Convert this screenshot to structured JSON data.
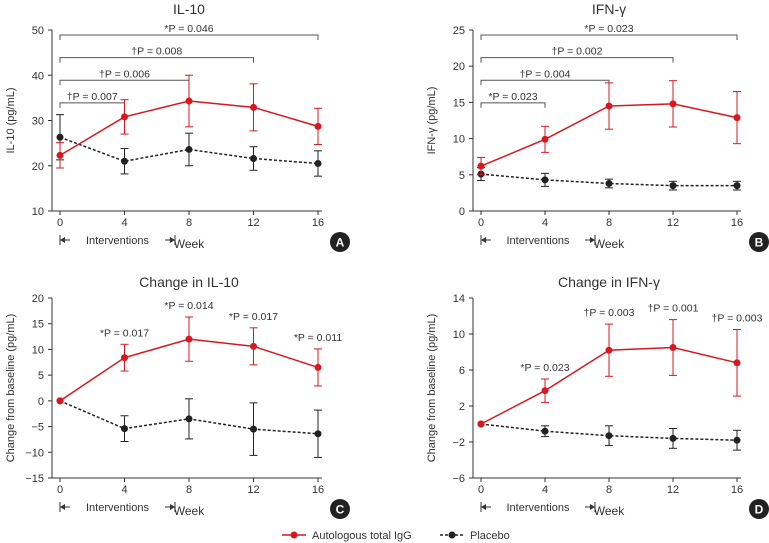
{
  "week_label": "Week",
  "interventions_label": "Interventions",
  "legend": {
    "igg": "Autologous total IgG",
    "placebo": "Placebo"
  },
  "colors": {
    "igg": "#d7191f",
    "placebo": "#222222"
  },
  "chart_data": [
    {
      "panel": "A",
      "type": "line",
      "title": "IL-10",
      "xlabel": "Week",
      "ylabel": "IL-10 (pg/mL)",
      "x": [
        0,
        4,
        8,
        12,
        16
      ],
      "ylim": [
        10,
        50
      ],
      "yticks": [
        10,
        20,
        30,
        40,
        50
      ],
      "series": [
        {
          "name": "Autologous total IgG",
          "values": [
            22.3,
            30.8,
            34.3,
            32.9,
            28.7
          ],
          "err": [
            2.8,
            3.8,
            5.7,
            5.2,
            4.0
          ]
        },
        {
          "name": "Placebo",
          "values": [
            26.3,
            21.0,
            23.6,
            21.6,
            20.5
          ],
          "err": [
            5.0,
            2.8,
            3.6,
            2.6,
            2.8
          ]
        }
      ],
      "brackets": [
        {
          "end": 16,
          "label": "*P = 0.046"
        },
        {
          "end": 12,
          "label": "†P = 0.008"
        },
        {
          "end": 8,
          "label": "†P = 0.006"
        },
        {
          "end": 4,
          "label": "†P = 0.007"
        }
      ]
    },
    {
      "panel": "B",
      "type": "line",
      "title": "IFN-γ",
      "xlabel": "Week",
      "ylabel": "IFN-γ (pg/mL)",
      "x": [
        0,
        4,
        8,
        12,
        16
      ],
      "ylim": [
        0,
        25
      ],
      "yticks": [
        0,
        5,
        10,
        15,
        20,
        25
      ],
      "series": [
        {
          "name": "Autologous total IgG",
          "values": [
            6.2,
            9.9,
            14.5,
            14.8,
            12.9
          ],
          "err": [
            1.2,
            1.8,
            3.2,
            3.2,
            3.6
          ]
        },
        {
          "name": "Placebo",
          "values": [
            5.1,
            4.3,
            3.8,
            3.5,
            3.5
          ],
          "err": [
            0.9,
            0.9,
            0.6,
            0.6,
            0.6
          ]
        }
      ],
      "brackets": [
        {
          "end": 16,
          "label": "*P = 0.023"
        },
        {
          "end": 12,
          "label": "†P = 0.002"
        },
        {
          "end": 8,
          "label": "†P = 0.004"
        },
        {
          "end": 4,
          "label": "*P = 0.023"
        }
      ]
    },
    {
      "panel": "C",
      "type": "line",
      "title": "Change in IL-10",
      "xlabel": "Week",
      "ylabel": "Change from baseline (pg/mL)",
      "x": [
        0,
        4,
        8,
        12,
        16
      ],
      "ylim": [
        -15,
        20
      ],
      "yticks": [
        -15,
        -10,
        -5,
        0,
        5,
        10,
        15,
        20
      ],
      "series": [
        {
          "name": "Autologous total IgG",
          "values": [
            0,
            8.4,
            12.0,
            10.6,
            6.5
          ],
          "err": [
            0,
            2.6,
            4.3,
            3.6,
            3.6
          ]
        },
        {
          "name": "Placebo",
          "values": [
            0,
            -5.4,
            -3.5,
            -5.5,
            -6.4
          ],
          "err": [
            0,
            2.5,
            3.9,
            5.1,
            4.6
          ]
        }
      ],
      "point_labels": [
        {
          "x": 4,
          "label": "*P = 0.017"
        },
        {
          "x": 8,
          "label": "*P = 0.014"
        },
        {
          "x": 12,
          "label": "*P = 0.017"
        },
        {
          "x": 16,
          "label": "*P = 0.011"
        }
      ]
    },
    {
      "panel": "D",
      "type": "line",
      "title": "Change in IFN-γ",
      "xlabel": "Week",
      "ylabel": "Change from baseline (pg/mL)",
      "x": [
        0,
        4,
        8,
        12,
        16
      ],
      "ylim": [
        -6,
        14
      ],
      "yticks": [
        -6,
        -2,
        2,
        6,
        10,
        14
      ],
      "series": [
        {
          "name": "Autologous total IgG",
          "values": [
            0,
            3.7,
            8.2,
            8.5,
            6.8
          ],
          "err": [
            0,
            1.3,
            2.9,
            3.1,
            3.7
          ]
        },
        {
          "name": "Placebo",
          "values": [
            0,
            -0.8,
            -1.3,
            -1.6,
            -1.8
          ],
          "err": [
            0,
            0.6,
            1.1,
            1.1,
            1.1
          ]
        }
      ],
      "point_labels": [
        {
          "x": 4,
          "label": "*P = 0.023"
        },
        {
          "x": 8,
          "label": "†P = 0.003"
        },
        {
          "x": 12,
          "label": "†P = 0.001"
        },
        {
          "x": 16,
          "label": "†P = 0.003"
        }
      ]
    }
  ]
}
